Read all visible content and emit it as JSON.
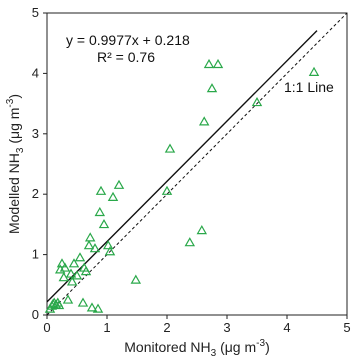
{
  "chart_data": {
    "type": "scatter",
    "xlim": [
      0,
      5
    ],
    "ylim": [
      0,
      5
    ],
    "x_ticks": [
      "0",
      "1",
      "2",
      "3",
      "4",
      "5"
    ],
    "y_ticks": [
      "0",
      "1",
      "2",
      "3",
      "4",
      "5"
    ],
    "xlabel": {
      "pre": "Monitored NH",
      "sub": "3",
      "mid": " (μg m",
      "sup": "-3",
      "post": ")"
    },
    "ylabel": {
      "pre": "Modelled NH",
      "sub": "3",
      "mid": " (μg m",
      "sup": "-3",
      "post": ")"
    },
    "grid": false,
    "marker": "open-triangle",
    "marker_color": "#2aa84a",
    "points": [
      {
        "x": 0.05,
        "y": 0.1
      },
      {
        "x": 0.08,
        "y": 0.15
      },
      {
        "x": 0.1,
        "y": 0.18
      },
      {
        "x": 0.12,
        "y": 0.2
      },
      {
        "x": 0.15,
        "y": 0.17
      },
      {
        "x": 0.18,
        "y": 0.2
      },
      {
        "x": 0.2,
        "y": 0.16
      },
      {
        "x": 0.22,
        "y": 0.75
      },
      {
        "x": 0.25,
        "y": 0.85
      },
      {
        "x": 0.28,
        "y": 0.62
      },
      {
        "x": 0.3,
        "y": 0.78
      },
      {
        "x": 0.35,
        "y": 0.25
      },
      {
        "x": 0.4,
        "y": 0.68
      },
      {
        "x": 0.42,
        "y": 0.55
      },
      {
        "x": 0.45,
        "y": 0.85
      },
      {
        "x": 0.5,
        "y": 0.65
      },
      {
        "x": 0.55,
        "y": 0.95
      },
      {
        "x": 0.6,
        "y": 0.2
      },
      {
        "x": 0.62,
        "y": 0.78
      },
      {
        "x": 0.65,
        "y": 0.72
      },
      {
        "x": 0.7,
        "y": 1.15
      },
      {
        "x": 0.72,
        "y": 1.28
      },
      {
        "x": 0.75,
        "y": 0.12
      },
      {
        "x": 0.8,
        "y": 1.1
      },
      {
        "x": 0.85,
        "y": 0.1
      },
      {
        "x": 0.88,
        "y": 1.7
      },
      {
        "x": 0.9,
        "y": 2.05
      },
      {
        "x": 0.95,
        "y": 1.5
      },
      {
        "x": 1.02,
        "y": 1.15
      },
      {
        "x": 1.05,
        "y": 1.05
      },
      {
        "x": 1.1,
        "y": 1.95
      },
      {
        "x": 1.2,
        "y": 2.15
      },
      {
        "x": 1.48,
        "y": 0.58
      },
      {
        "x": 2.0,
        "y": 2.05
      },
      {
        "x": 2.05,
        "y": 2.75
      },
      {
        "x": 2.38,
        "y": 1.2
      },
      {
        "x": 2.58,
        "y": 1.4
      },
      {
        "x": 2.62,
        "y": 3.2
      },
      {
        "x": 2.7,
        "y": 4.15
      },
      {
        "x": 2.75,
        "y": 3.75
      },
      {
        "x": 2.85,
        "y": 4.15
      },
      {
        "x": 3.5,
        "y": 3.52
      },
      {
        "x": 4.45,
        "y": 4.02
      }
    ],
    "regression": {
      "slope": 0.9977,
      "intercept": 0.218,
      "x_range": [
        0,
        4.5
      ],
      "color": "#111111"
    },
    "one_to_one": {
      "x_range": [
        0,
        5
      ],
      "color": "#111111",
      "dash": true,
      "label": "1:1 Line"
    },
    "equation_text": "y = 0.9977x + 0.218",
    "r2_text": "R² = 0.76"
  }
}
